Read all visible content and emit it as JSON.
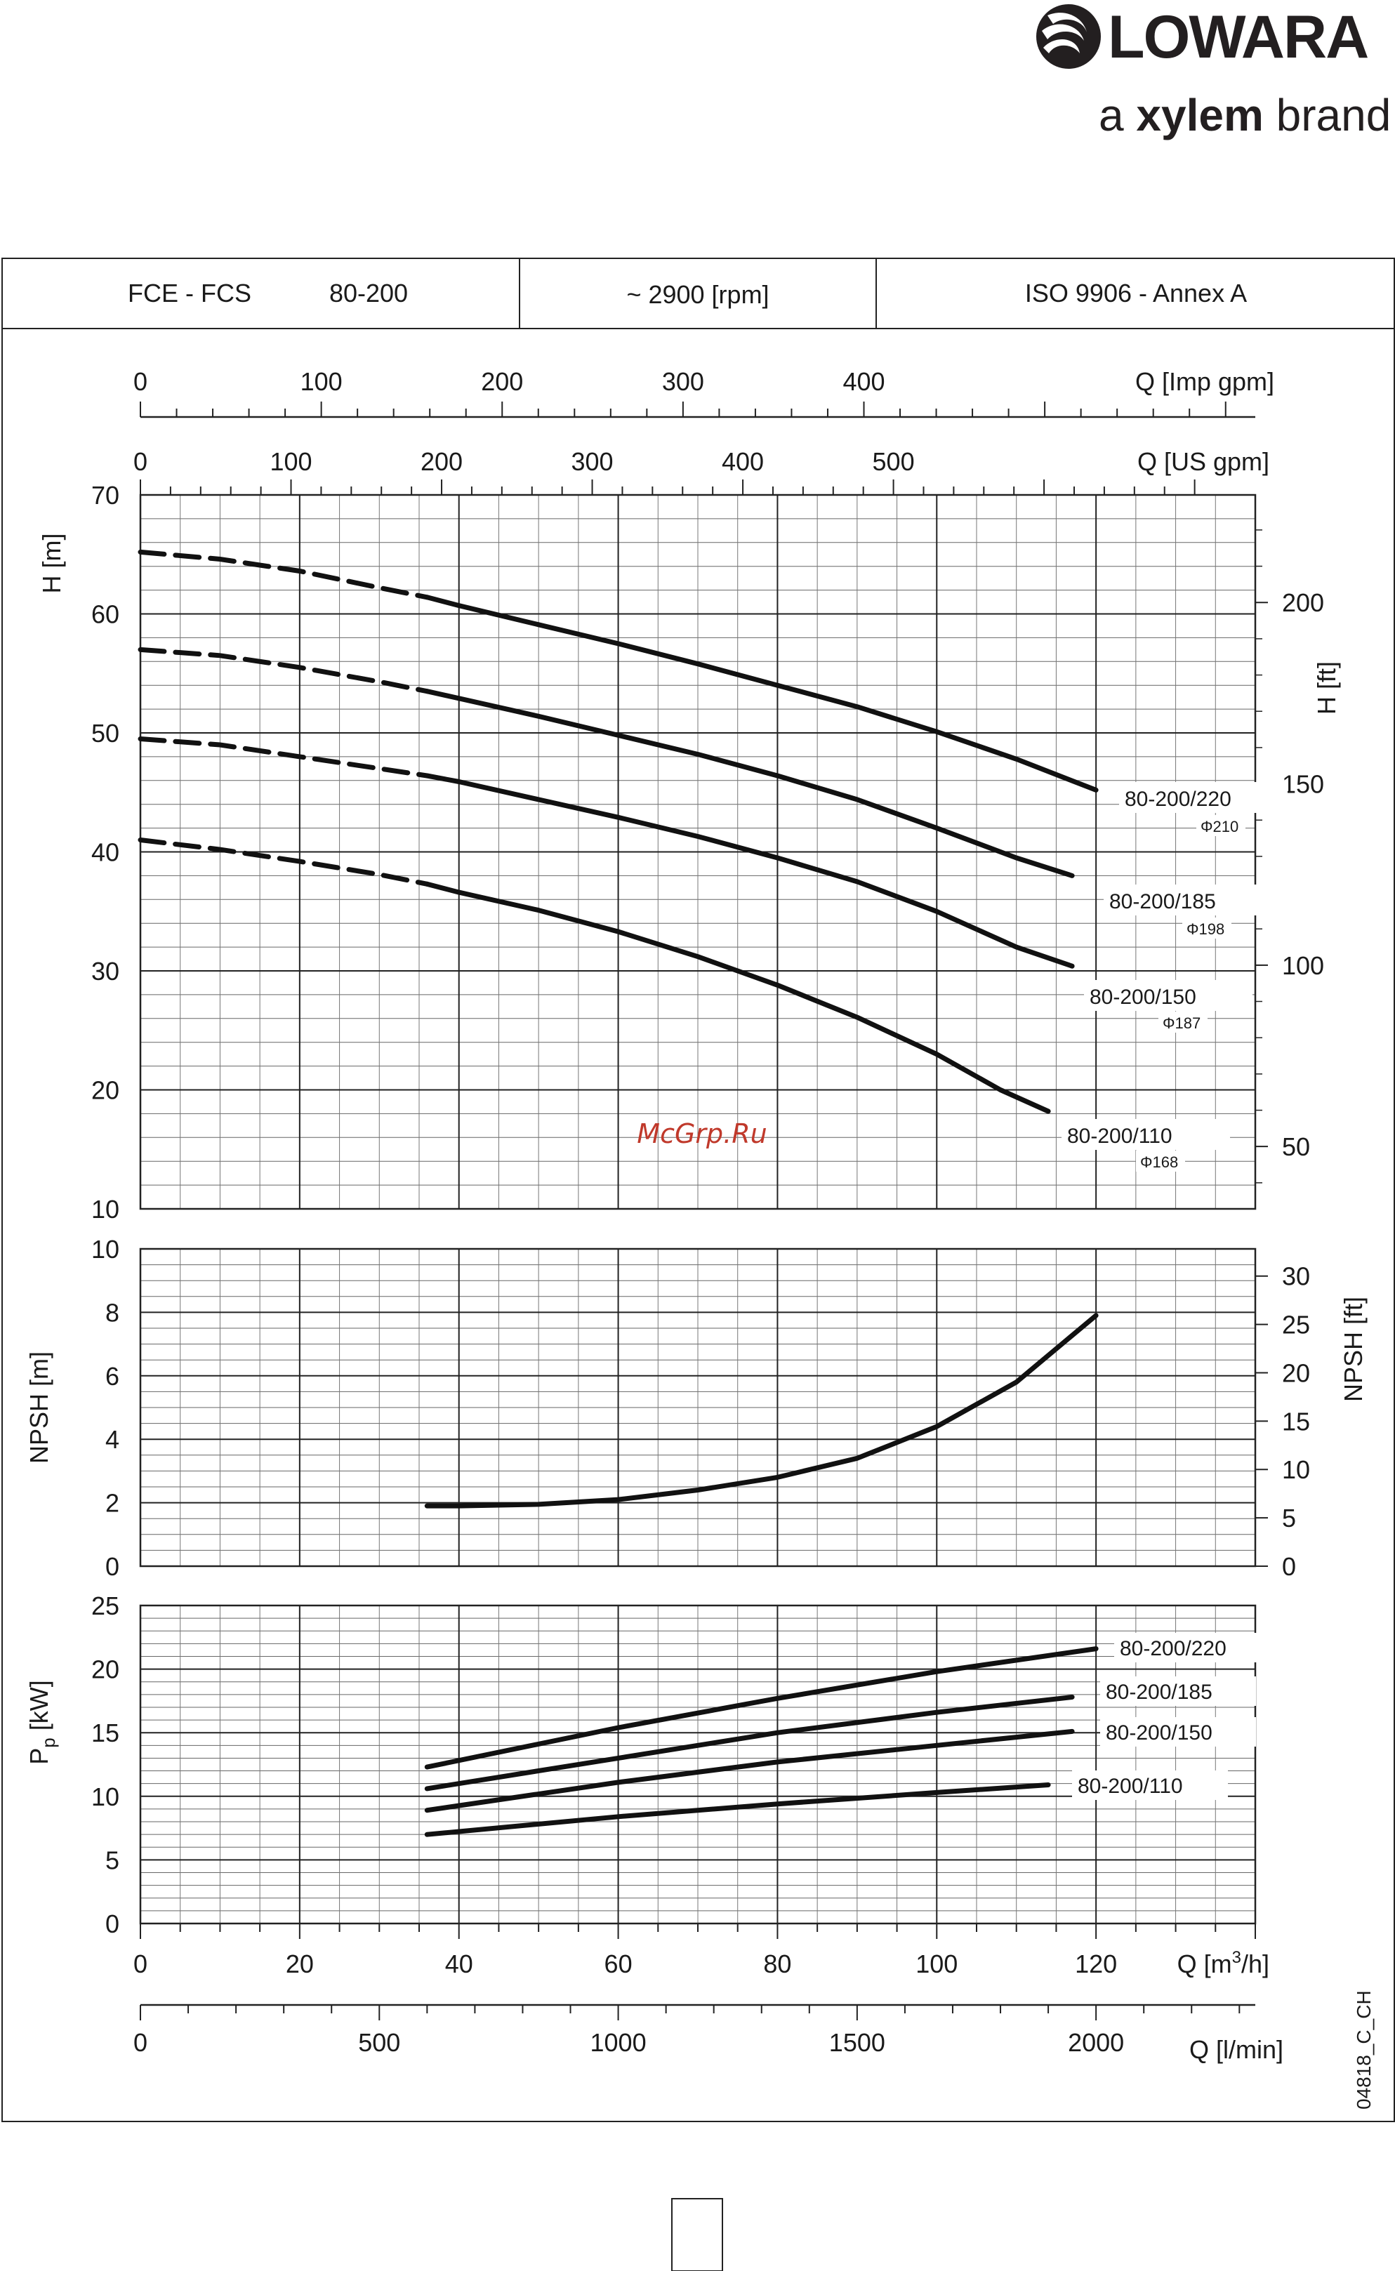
{
  "brand": {
    "name": "LOWARA",
    "tagline_pre": "a ",
    "tagline_brand": "xylem",
    "tagline_post": " brand",
    "color": "#231f20"
  },
  "header": {
    "model_series": "FCE - FCS",
    "model_size": "80-200",
    "speed": "~ 2900 [rpm]",
    "standard": "ISO 9906 - Annex A"
  },
  "watermark": "McGrp.Ru",
  "watermark_color": "#c0392b",
  "doc_code": "04818_C_CH",
  "axes": {
    "imp_gpm": {
      "label": "Q [Imp gpm]",
      "ticks": [
        "0",
        "100",
        "200",
        "300",
        "400"
      ]
    },
    "us_gpm": {
      "label": "Q [US gpm]",
      "ticks": [
        "0",
        "100",
        "200",
        "300",
        "400",
        "500"
      ]
    },
    "m3h": {
      "label_main": "Q [m",
      "label_sup": "3",
      "label_tail": "/h]",
      "ticks": [
        "0",
        "20",
        "40",
        "60",
        "80",
        "100",
        "120"
      ]
    },
    "lmin": {
      "label": "Q [l/min]",
      "ticks": [
        "0",
        "500",
        "1000",
        "1500",
        "2000"
      ]
    },
    "head_m": {
      "label": "H [m]",
      "ticks": [
        "10",
        "20",
        "30",
        "40",
        "50",
        "60",
        "70"
      ]
    },
    "head_ft": {
      "label": "H [ft]",
      "ticks": [
        "50",
        "100",
        "150",
        "200"
      ]
    },
    "npsh_m": {
      "label": "NPSH [m]",
      "ticks": [
        "0",
        "2",
        "4",
        "6",
        "8",
        "10"
      ]
    },
    "npsh_ft": {
      "label": "NPSH [ft]",
      "ticks": [
        "0",
        "5",
        "10",
        "15",
        "20",
        "25",
        "30"
      ]
    },
    "power": {
      "label_main": "P",
      "label_sub": "p",
      "label_tail": " [kW]",
      "ticks": [
        "0",
        "5",
        "10",
        "15",
        "20",
        "25"
      ]
    }
  },
  "chart_data": [
    {
      "type": "line",
      "title": "",
      "xlabel": "Q [m3/h]",
      "ylabel": "H [m]",
      "xlim": [
        0,
        140
      ],
      "ylim": [
        10,
        70
      ],
      "series": [
        {
          "name": "80-200/220",
          "diameter": "Φ210",
          "x": [
            0,
            10,
            20,
            30,
            36,
            40,
            50,
            60,
            70,
            80,
            90,
            100,
            110,
            120
          ],
          "y": [
            65.2,
            64.6,
            63.6,
            62.2,
            61.4,
            60.7,
            59.1,
            57.5,
            55.8,
            54,
            52.2,
            50.1,
            47.8,
            45.2
          ],
          "dashed_until_x": 36
        },
        {
          "name": "80-200/185",
          "diameter": "Φ198",
          "x": [
            0,
            10,
            20,
            30,
            36,
            40,
            50,
            60,
            70,
            80,
            90,
            100,
            110,
            117
          ],
          "y": [
            57,
            56.5,
            55.5,
            54.3,
            53.5,
            52.9,
            51.4,
            49.8,
            48.2,
            46.4,
            44.4,
            42,
            39.5,
            38
          ],
          "dashed_until_x": 36
        },
        {
          "name": "80-200/150",
          "diameter": "Φ187",
          "x": [
            0,
            10,
            20,
            30,
            36,
            40,
            50,
            60,
            70,
            80,
            90,
            100,
            110,
            117
          ],
          "y": [
            49.5,
            49,
            48,
            47,
            46.4,
            45.9,
            44.4,
            42.9,
            41.3,
            39.5,
            37.5,
            35,
            32,
            30.4
          ],
          "dashed_until_x": 36
        },
        {
          "name": "80-200/110",
          "diameter": "Φ168",
          "x": [
            0,
            10,
            20,
            30,
            36,
            40,
            50,
            60,
            70,
            80,
            90,
            100,
            108,
            114
          ],
          "y": [
            41,
            40.2,
            39.2,
            38.1,
            37.3,
            36.6,
            35.1,
            33.3,
            31.2,
            28.8,
            26.1,
            23,
            20,
            18.2
          ],
          "dashed_until_x": 36
        }
      ]
    },
    {
      "type": "line",
      "title": "",
      "xlabel": "Q [m3/h]",
      "ylabel": "NPSH [m]",
      "xlim": [
        0,
        140
      ],
      "ylim": [
        0,
        10
      ],
      "series": [
        {
          "name": "",
          "x": [
            36,
            40,
            50,
            60,
            70,
            80,
            90,
            100,
            110,
            120
          ],
          "y": [
            1.9,
            1.9,
            1.95,
            2.1,
            2.4,
            2.8,
            3.4,
            4.4,
            5.8,
            7.9
          ]
        }
      ]
    },
    {
      "type": "line",
      "title": "",
      "xlabel": "Q [m3/h]",
      "ylabel": "Pp [kW]",
      "xlim": [
        0,
        140
      ],
      "ylim": [
        0,
        25
      ],
      "series": [
        {
          "name": "80-200/220",
          "x": [
            36,
            60,
            80,
            100,
            120
          ],
          "y": [
            12.3,
            15.4,
            17.7,
            19.8,
            21.6
          ]
        },
        {
          "name": "80-200/185",
          "x": [
            36,
            60,
            80,
            100,
            117
          ],
          "y": [
            10.6,
            13,
            15,
            16.6,
            17.8
          ]
        },
        {
          "name": "80-200/150",
          "x": [
            36,
            60,
            80,
            100,
            117
          ],
          "y": [
            8.9,
            11.1,
            12.7,
            14,
            15.1
          ]
        },
        {
          "name": "80-200/110",
          "x": [
            36,
            60,
            80,
            100,
            114
          ],
          "y": [
            7,
            8.4,
            9.4,
            10.3,
            10.9
          ]
        }
      ]
    }
  ]
}
